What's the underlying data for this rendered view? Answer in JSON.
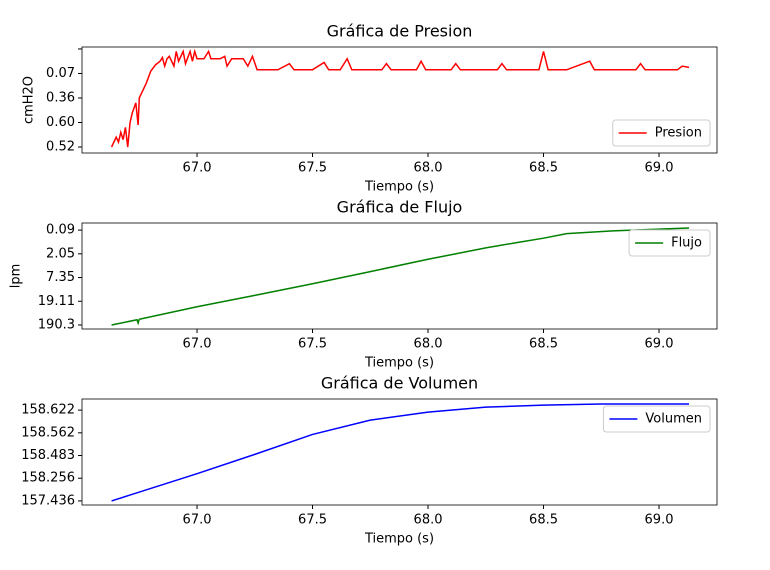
{
  "chart_data": [
    {
      "type": "line",
      "title": "Gráfica de Presion",
      "xlabel": "Tiempo (s)",
      "ylabel": "cmH2O",
      "legend": "lower right",
      "x": [
        66.63,
        66.65,
        66.66,
        66.67,
        66.68,
        66.69,
        66.7,
        66.71,
        66.72,
        66.735,
        66.745,
        66.75,
        66.78,
        66.8,
        66.82,
        66.84,
        66.85,
        66.86,
        66.87,
        66.88,
        66.9,
        66.91,
        66.92,
        66.94,
        66.95,
        66.97,
        66.98,
        66.99,
        67.0,
        67.03,
        67.05,
        67.06,
        67.1,
        67.12,
        67.13,
        67.15,
        67.2,
        67.22,
        67.24,
        67.26,
        67.35,
        67.4,
        67.42,
        67.5,
        67.55,
        67.57,
        67.62,
        67.65,
        67.67,
        67.8,
        67.82,
        67.84,
        67.95,
        67.97,
        67.99,
        68.1,
        68.12,
        68.14,
        68.3,
        68.32,
        68.34,
        68.48,
        68.5,
        68.52,
        68.6,
        68.7,
        68.72,
        68.9,
        68.92,
        68.94,
        69.08,
        69.1,
        69.13
      ],
      "series": [
        {
          "name": "Presion",
          "color": "#ff0000",
          "values": [
            0,
            0.4,
            0.2,
            0.6,
            0.3,
            0.8,
            0.0,
            1.0,
            1.4,
            1.8,
            0.9,
            2.0,
            2.6,
            3.1,
            3.35,
            3.5,
            3.65,
            3.3,
            3.6,
            3.7,
            3.3,
            3.9,
            3.5,
            3.9,
            3.4,
            3.9,
            3.5,
            3.9,
            3.6,
            3.6,
            3.9,
            3.6,
            3.6,
            3.7,
            3.3,
            3.6,
            3.6,
            3.3,
            3.7,
            3.15,
            3.15,
            3.4,
            3.15,
            3.15,
            3.45,
            3.15,
            3.15,
            3.6,
            3.15,
            3.15,
            3.4,
            3.15,
            3.15,
            3.5,
            3.15,
            3.15,
            3.4,
            3.15,
            3.15,
            3.4,
            3.15,
            3.15,
            3.9,
            3.15,
            3.15,
            3.5,
            3.15,
            3.15,
            3.4,
            3.15,
            3.15,
            3.3,
            3.25
          ]
        }
      ],
      "xlim": [
        66.502,
        69.251
      ],
      "ylim": [
        -0.245,
        4.08
      ],
      "xticks": [
        {
          "value": 67,
          "label": "67.0"
        },
        {
          "value": 67.5,
          "label": "67.5"
        },
        {
          "value": 68,
          "label": "68.0"
        },
        {
          "value": 68.5,
          "label": "68.5"
        },
        {
          "value": 69,
          "label": "69.0"
        }
      ],
      "yticks": [
        {
          "value": 0,
          "label": "0.52"
        },
        {
          "value": 1,
          "label": "0.60"
        },
        {
          "value": 2,
          "label": "0.36"
        },
        {
          "value": 3,
          "label": "0.07"
        },
        {
          "value": 4,
          "label": null
        }
      ]
    },
    {
      "type": "line",
      "title": "Gráfica de Flujo",
      "xlabel": "Tiempo (s)",
      "ylabel": "lpm",
      "legend": "upper right",
      "x": [
        66.63,
        66.74,
        66.745,
        66.75,
        67.0,
        67.25,
        67.5,
        67.75,
        68.0,
        68.25,
        68.4,
        68.5,
        68.6,
        68.8,
        69.0,
        69.13
      ],
      "series": [
        {
          "name": "Flujo",
          "color": "#008000",
          "values": [
            0,
            0.22,
            0.08,
            0.24,
            0.77,
            1.25,
            1.74,
            2.25,
            2.77,
            3.25,
            3.5,
            3.66,
            3.85,
            3.97,
            4.04,
            4.09
          ]
        }
      ],
      "xlim": [
        66.502,
        69.251
      ],
      "ylim": [
        -0.17,
        4.3
      ],
      "xticks": [
        {
          "value": 67,
          "label": "67.0"
        },
        {
          "value": 67.5,
          "label": "67.5"
        },
        {
          "value": 68,
          "label": "68.0"
        },
        {
          "value": 68.5,
          "label": "68.5"
        },
        {
          "value": 69,
          "label": "69.0"
        }
      ],
      "yticks": [
        {
          "value": 0,
          "label": "190.3"
        },
        {
          "value": 1,
          "label": "19.11"
        },
        {
          "value": 2,
          "label": "7.35"
        },
        {
          "value": 3,
          "label": "2.05"
        },
        {
          "value": 4,
          "label": "0.09"
        }
      ]
    },
    {
      "type": "line",
      "title": "Gráfica de Volumen",
      "xlabel": "Tiempo (s)",
      "legend": "upper right",
      "x": [
        66.63,
        67.0,
        67.25,
        67.5,
        67.75,
        68.0,
        68.25,
        68.5,
        68.75,
        69.13
      ],
      "series": [
        {
          "name": "Volumen",
          "color": "#0000ff",
          "values": [
            0,
            1.2,
            2.05,
            2.93,
            3.56,
            3.91,
            4.13,
            4.22,
            4.27,
            4.27
          ]
        }
      ],
      "xlim": [
        66.502,
        69.251
      ],
      "ylim": [
        -0.18,
        4.49
      ],
      "xticks": [
        {
          "value": 67,
          "label": "67.0"
        },
        {
          "value": 67.5,
          "label": "67.5"
        },
        {
          "value": 68,
          "label": "68.0"
        },
        {
          "value": 68.5,
          "label": "68.5"
        },
        {
          "value": 69,
          "label": "69.0"
        }
      ],
      "yticks": [
        {
          "value": 0,
          "label": "157.436"
        },
        {
          "value": 1,
          "label": "158.256"
        },
        {
          "value": 2,
          "label": "158.483"
        },
        {
          "value": 3,
          "label": "158.562"
        },
        {
          "value": 4,
          "label": "158.622"
        }
      ]
    }
  ]
}
